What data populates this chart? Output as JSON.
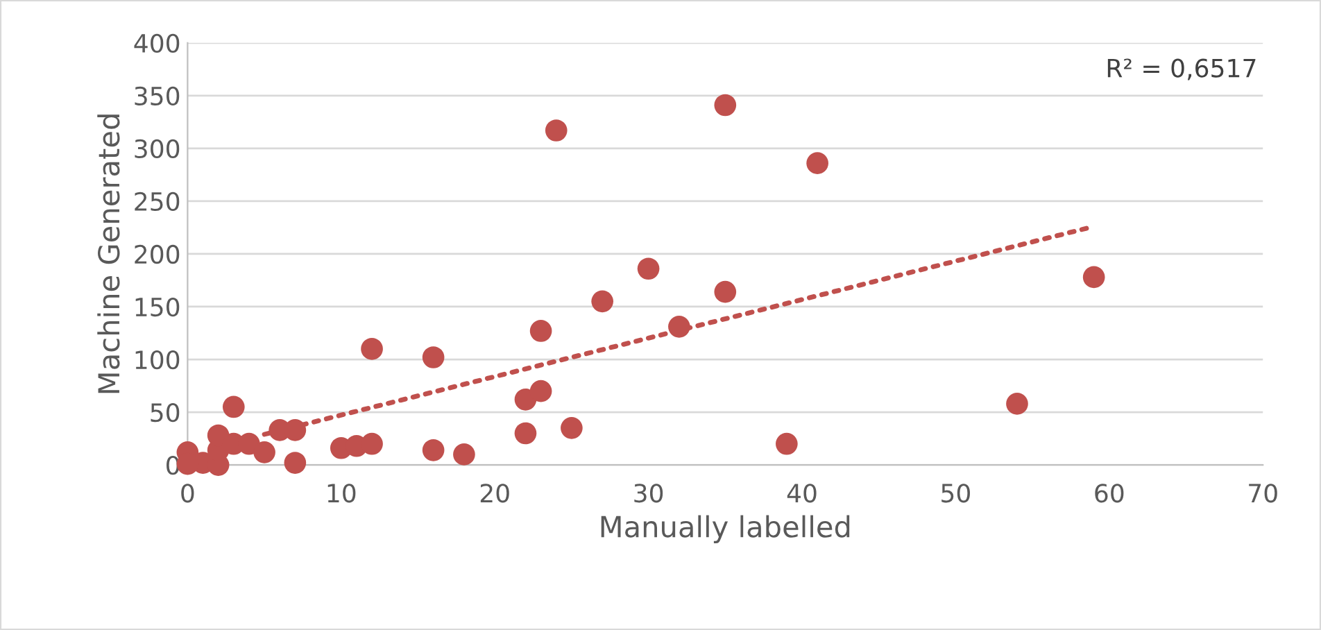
{
  "chart_data": {
    "type": "scatter",
    "xlabel": "Manually labelled",
    "ylabel": "Machine Generated",
    "xlim": [
      0,
      70
    ],
    "xticks": [
      0,
      10,
      20,
      30,
      40,
      50,
      60,
      70
    ],
    "ylim": [
      0,
      400
    ],
    "yticks": [
      0,
      50,
      100,
      150,
      200,
      250,
      300,
      350,
      400
    ],
    "grid": "y",
    "marker": "circle",
    "series": [
      {
        "color": "#c0504d",
        "x": [
          0,
          1,
          2,
          2,
          2,
          3,
          3,
          4,
          5,
          6,
          7,
          7,
          10,
          11,
          12,
          12,
          16,
          16,
          18,
          22,
          22,
          23,
          23,
          24,
          25,
          27,
          30,
          32,
          35,
          35,
          39,
          41,
          54,
          59,
          0
        ],
        "values": [
          12,
          2,
          0,
          14,
          28,
          55,
          20,
          20,
          12,
          33,
          33,
          2,
          16,
          18,
          20,
          110,
          102,
          14,
          10,
          62,
          30,
          127,
          70,
          317,
          35,
          155,
          186,
          131,
          341,
          164,
          20,
          286,
          58,
          178,
          1
        ]
      },
      {
        "type": "line",
        "color": "#c0504d",
        "line_style": "dotted",
        "marker": "none",
        "x": [
          5,
          59
        ],
        "values": [
          29,
          226
        ]
      }
    ],
    "annotations": [
      "R² = 0,6517"
    ]
  }
}
